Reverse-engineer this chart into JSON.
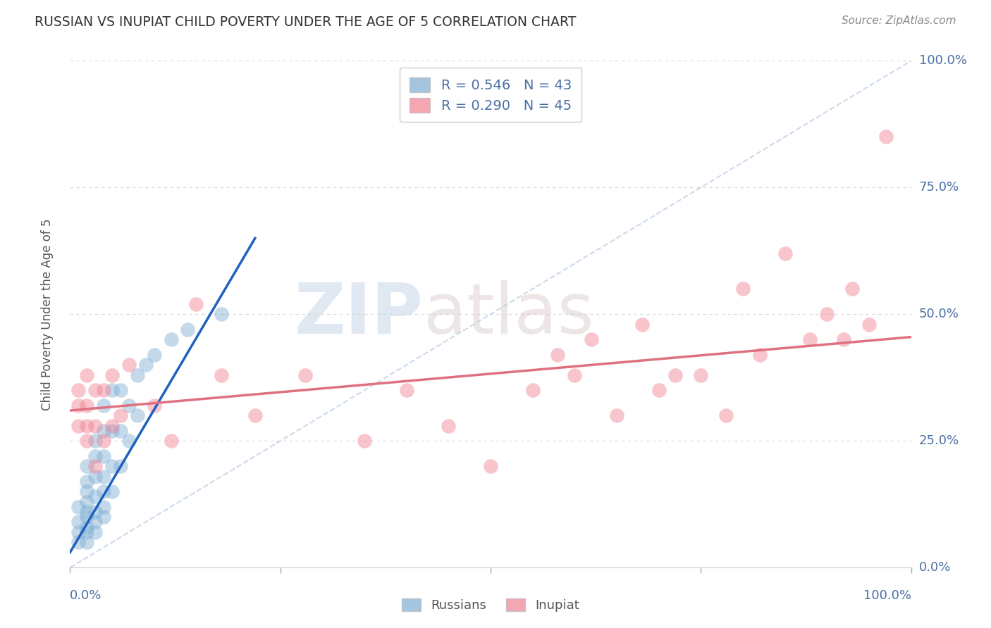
{
  "title": "RUSSIAN VS INUPIAT CHILD POVERTY UNDER THE AGE OF 5 CORRELATION CHART",
  "source": "Source: ZipAtlas.com",
  "ylabel": "Child Poverty Under the Age of 5",
  "ytick_labels": [
    "0.0%",
    "25.0%",
    "50.0%",
    "75.0%",
    "100.0%"
  ],
  "ytick_values": [
    0.0,
    0.25,
    0.5,
    0.75,
    1.0
  ],
  "legend_entries": [
    {
      "label": "R = 0.546   N = 43",
      "color": "#a8c4e0"
    },
    {
      "label": "R = 0.290   N = 45",
      "color": "#f0a0b0"
    }
  ],
  "legend_bottom": [
    "Russians",
    "Inupiat"
  ],
  "russian_color": "#7dadd4",
  "inupiat_color": "#f08090",
  "russian_line_color": "#2060c0",
  "inupiat_line_color": "#e07080",
  "diagonal_color": "#c0d0e8",
  "watermark_zip": "ZIP",
  "watermark_atlas": "atlas",
  "background_color": "#ffffff",
  "grid_color": "#d8d8d8",
  "russians_x": [
    0.01,
    0.01,
    0.01,
    0.01,
    0.02,
    0.02,
    0.02,
    0.02,
    0.02,
    0.02,
    0.02,
    0.02,
    0.02,
    0.03,
    0.03,
    0.03,
    0.03,
    0.03,
    0.03,
    0.03,
    0.04,
    0.04,
    0.04,
    0.04,
    0.04,
    0.04,
    0.04,
    0.05,
    0.05,
    0.05,
    0.05,
    0.06,
    0.06,
    0.06,
    0.07,
    0.07,
    0.08,
    0.08,
    0.09,
    0.1,
    0.12,
    0.14,
    0.18
  ],
  "russians_y": [
    0.05,
    0.07,
    0.09,
    0.12,
    0.05,
    0.07,
    0.08,
    0.1,
    0.11,
    0.13,
    0.15,
    0.17,
    0.2,
    0.07,
    0.09,
    0.11,
    0.14,
    0.18,
    0.22,
    0.25,
    0.1,
    0.12,
    0.15,
    0.18,
    0.22,
    0.27,
    0.32,
    0.15,
    0.2,
    0.27,
    0.35,
    0.2,
    0.27,
    0.35,
    0.25,
    0.32,
    0.3,
    0.38,
    0.4,
    0.42,
    0.45,
    0.47,
    0.5
  ],
  "inupiats_x": [
    0.01,
    0.01,
    0.01,
    0.02,
    0.02,
    0.02,
    0.02,
    0.03,
    0.03,
    0.03,
    0.04,
    0.04,
    0.05,
    0.05,
    0.06,
    0.07,
    0.1,
    0.12,
    0.15,
    0.18,
    0.22,
    0.28,
    0.35,
    0.4,
    0.45,
    0.5,
    0.55,
    0.58,
    0.6,
    0.62,
    0.65,
    0.68,
    0.7,
    0.72,
    0.75,
    0.78,
    0.8,
    0.82,
    0.85,
    0.88,
    0.9,
    0.92,
    0.93,
    0.95,
    0.97
  ],
  "inupiats_y": [
    0.28,
    0.32,
    0.35,
    0.25,
    0.28,
    0.32,
    0.38,
    0.2,
    0.28,
    0.35,
    0.25,
    0.35,
    0.28,
    0.38,
    0.3,
    0.4,
    0.32,
    0.25,
    0.52,
    0.38,
    0.3,
    0.38,
    0.25,
    0.35,
    0.28,
    0.2,
    0.35,
    0.42,
    0.38,
    0.45,
    0.3,
    0.48,
    0.35,
    0.38,
    0.38,
    0.3,
    0.55,
    0.42,
    0.62,
    0.45,
    0.5,
    0.45,
    0.55,
    0.48,
    0.85
  ]
}
